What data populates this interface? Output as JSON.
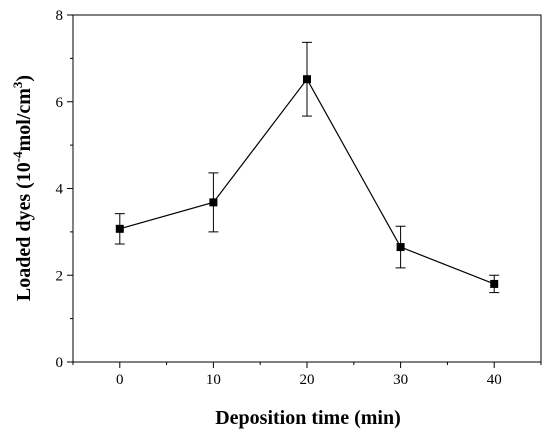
{
  "chart_data": {
    "type": "line",
    "title": "",
    "xlabel": "Deposition time (min)",
    "ylabel_parts": {
      "prefix": "Loaded dyes (10",
      "exp1": "-4",
      "middle": "mol/cm",
      "exp2": "3",
      "suffix": ")"
    },
    "xlim": [
      -5,
      45
    ],
    "ylim": [
      0,
      8
    ],
    "xticks": [
      0,
      10,
      20,
      30,
      40
    ],
    "yticks": [
      0,
      2,
      4,
      6,
      8
    ],
    "grid": false,
    "series": [
      {
        "x": [
          0,
          10,
          20,
          30,
          40
        ],
        "y": [
          3.07,
          3.68,
          6.52,
          2.65,
          1.8
        ],
        "err": [
          0.35,
          0.68,
          0.85,
          0.48,
          0.2
        ],
        "marker": "square",
        "color": "#000000"
      }
    ]
  }
}
